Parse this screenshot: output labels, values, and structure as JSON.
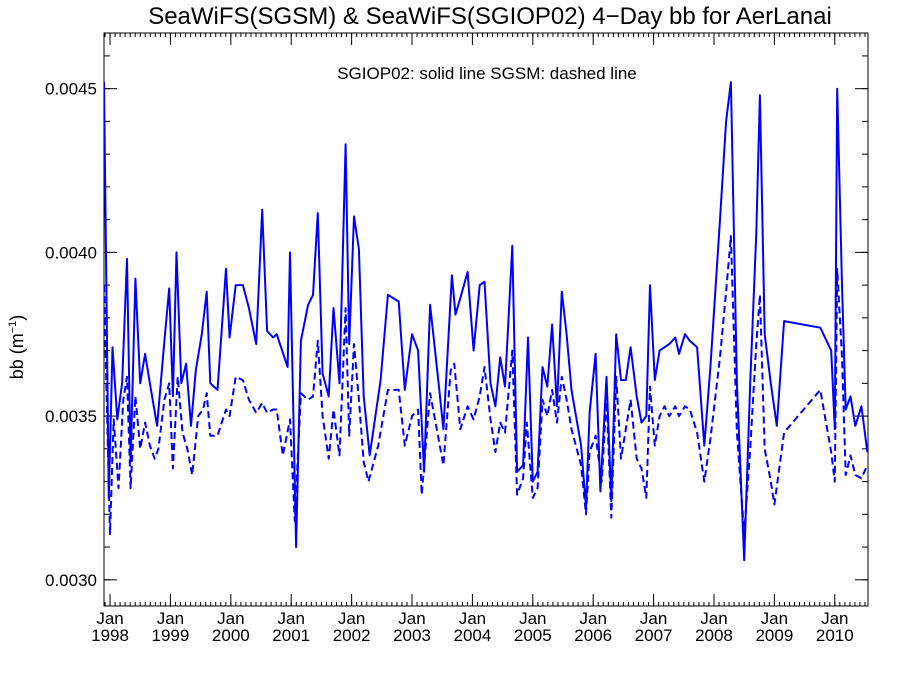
{
  "chart_data": {
    "type": "line",
    "title": "SeaWiFS(SGSM) & SeaWiFS(SGIOP02) 4−Day bb for AerLanai",
    "xlabel": "",
    "ylabel": "bb (m",
    "ylabel_sup": "−1",
    "ylabel_close": ")",
    "annotation": "SGIOP02: solid line   SGSM: dashed line",
    "xlim": [
      1997.9,
      2010.55
    ],
    "ylim": [
      0.00292,
      0.00467
    ],
    "x_ticks": [
      {
        "x": 1998,
        "month": "Jan",
        "year": "1998"
      },
      {
        "x": 1999,
        "month": "Jan",
        "year": "1999"
      },
      {
        "x": 2000,
        "month": "Jan",
        "year": "2000"
      },
      {
        "x": 2001,
        "month": "Jan",
        "year": "2001"
      },
      {
        "x": 2002,
        "month": "Jan",
        "year": "2002"
      },
      {
        "x": 2003,
        "month": "Jan",
        "year": "2003"
      },
      {
        "x": 2004,
        "month": "Jan",
        "year": "2004"
      },
      {
        "x": 2005,
        "month": "Jan",
        "year": "2005"
      },
      {
        "x": 2006,
        "month": "Jan",
        "year": "2006"
      },
      {
        "x": 2007,
        "month": "Jan",
        "year": "2007"
      },
      {
        "x": 2008,
        "month": "Jan",
        "year": "2008"
      },
      {
        "x": 2009,
        "month": "Jan",
        "year": "2009"
      },
      {
        "x": 2010,
        "month": "Jan",
        "year": "2010"
      }
    ],
    "y_ticks": [
      {
        "v": 0.003,
        "label": "0.0030"
      },
      {
        "v": 0.0035,
        "label": "0.0035"
      },
      {
        "v": 0.004,
        "label": "0.0040"
      },
      {
        "v": 0.0045,
        "label": "0.0045"
      }
    ],
    "color": "#0000ff",
    "series": [
      {
        "name": "SGIOP02",
        "style": "solid",
        "points": [
          [
            1997.9,
            0.00452
          ],
          [
            1997.98,
            0.00325
          ],
          [
            1998.04,
            0.00371
          ],
          [
            1998.12,
            0.00349
          ],
          [
            1998.2,
            0.0036
          ],
          [
            1998.28,
            0.00398
          ],
          [
            1998.34,
            0.00336
          ],
          [
            1998.42,
            0.00392
          ],
          [
            1998.5,
            0.0036
          ],
          [
            1998.58,
            0.00369
          ],
          [
            1998.66,
            0.0036
          ],
          [
            1998.78,
            0.00347
          ],
          [
            1998.9,
            0.00373
          ],
          [
            1998.98,
            0.00389
          ],
          [
            1999.04,
            0.00356
          ],
          [
            1999.1,
            0.004
          ],
          [
            1999.18,
            0.0036
          ],
          [
            1999.26,
            0.00366
          ],
          [
            1999.34,
            0.00347
          ],
          [
            1999.42,
            0.00364
          ],
          [
            1999.52,
            0.00375
          ],
          [
            1999.6,
            0.00388
          ],
          [
            1999.66,
            0.0036
          ],
          [
            1999.78,
            0.00358
          ],
          [
            1999.92,
            0.00395
          ],
          [
            1999.98,
            0.00374
          ],
          [
            2000.08,
            0.0039
          ],
          [
            2000.2,
            0.0039
          ],
          [
            2000.3,
            0.00383
          ],
          [
            2000.42,
            0.00372
          ],
          [
            2000.52,
            0.00413
          ],
          [
            2000.6,
            0.00376
          ],
          [
            2000.7,
            0.00374
          ],
          [
            2000.76,
            0.00375
          ],
          [
            2000.94,
            0.00365
          ],
          [
            2000.98,
            0.004
          ],
          [
            2001.08,
            0.0031
          ],
          [
            2001.16,
            0.00373
          ],
          [
            2001.28,
            0.00384
          ],
          [
            2001.36,
            0.00387
          ],
          [
            2001.44,
            0.00412
          ],
          [
            2001.52,
            0.00363
          ],
          [
            2001.62,
            0.00356
          ],
          [
            2001.7,
            0.00383
          ],
          [
            2001.8,
            0.0036
          ],
          [
            2001.9,
            0.00433
          ],
          [
            2001.96,
            0.00372
          ],
          [
            2002.04,
            0.00411
          ],
          [
            2002.12,
            0.00401
          ],
          [
            2002.2,
            0.00356
          ],
          [
            2002.3,
            0.00338
          ],
          [
            2002.48,
            0.00361
          ],
          [
            2002.6,
            0.00387
          ],
          [
            2002.78,
            0.00385
          ],
          [
            2002.88,
            0.00358
          ],
          [
            2003.0,
            0.00375
          ],
          [
            2003.1,
            0.0037
          ],
          [
            2003.2,
            0.00333
          ],
          [
            2003.3,
            0.00384
          ],
          [
            2003.44,
            0.0036
          ],
          [
            2003.52,
            0.00346
          ],
          [
            2003.66,
            0.00393
          ],
          [
            2003.72,
            0.00381
          ],
          [
            2003.8,
            0.00386
          ],
          [
            2003.92,
            0.00394
          ],
          [
            2004.02,
            0.0037
          ],
          [
            2004.12,
            0.0039
          ],
          [
            2004.2,
            0.00391
          ],
          [
            2004.3,
            0.0036
          ],
          [
            2004.38,
            0.00353
          ],
          [
            2004.46,
            0.00368
          ],
          [
            2004.54,
            0.00359
          ],
          [
            2004.66,
            0.00402
          ],
          [
            2004.74,
            0.00333
          ],
          [
            2004.84,
            0.00335
          ],
          [
            2004.92,
            0.00374
          ],
          [
            2005.0,
            0.0033
          ],
          [
            2005.08,
            0.00333
          ],
          [
            2005.16,
            0.00365
          ],
          [
            2005.24,
            0.00359
          ],
          [
            2005.32,
            0.00378
          ],
          [
            2005.4,
            0.00353
          ],
          [
            2005.48,
            0.00388
          ],
          [
            2005.56,
            0.00375
          ],
          [
            2005.64,
            0.00358
          ],
          [
            2005.8,
            0.00341
          ],
          [
            2005.88,
            0.00322
          ],
          [
            2005.94,
            0.00351
          ],
          [
            2006.04,
            0.00369
          ],
          [
            2006.12,
            0.00327
          ],
          [
            2006.22,
            0.00362
          ],
          [
            2006.3,
            0.00324
          ],
          [
            2006.38,
            0.00375
          ],
          [
            2006.46,
            0.00361
          ],
          [
            2006.54,
            0.00361
          ],
          [
            2006.62,
            0.00371
          ],
          [
            2006.72,
            0.00356
          ],
          [
            2006.8,
            0.00348
          ],
          [
            2006.88,
            0.0035
          ],
          [
            2006.94,
            0.0039
          ],
          [
            2007.02,
            0.00361
          ],
          [
            2007.1,
            0.0037
          ],
          [
            2007.18,
            0.00371
          ],
          [
            2007.26,
            0.00372
          ],
          [
            2007.36,
            0.00374
          ],
          [
            2007.42,
            0.00369
          ],
          [
            2007.52,
            0.00375
          ],
          [
            2007.6,
            0.00373
          ],
          [
            2007.72,
            0.00371
          ],
          [
            2007.84,
            0.00341
          ],
          [
            2007.94,
            0.00365
          ],
          [
            2008.1,
            0.0041
          ],
          [
            2008.2,
            0.0044
          ],
          [
            2008.28,
            0.00452
          ],
          [
            2008.38,
            0.0036
          ],
          [
            2008.5,
            0.00306
          ],
          [
            2008.6,
            0.0036
          ],
          [
            2008.7,
            0.00406
          ],
          [
            2008.76,
            0.00448
          ],
          [
            2008.84,
            0.00375
          ],
          [
            2008.94,
            0.0036
          ],
          [
            2009.04,
            0.00347
          ],
          [
            2009.16,
            0.00379
          ],
          [
            2009.76,
            0.00377
          ],
          [
            2009.94,
            0.0037
          ],
          [
            2010.0,
            0.00346
          ],
          [
            2010.04,
            0.0045
          ],
          [
            2010.12,
            0.0039
          ],
          [
            2010.18,
            0.00352
          ],
          [
            2010.26,
            0.00356
          ],
          [
            2010.34,
            0.00347
          ],
          [
            2010.44,
            0.00353
          ],
          [
            2010.54,
            0.00339
          ]
        ]
      },
      {
        "name": "SGSM",
        "style": "dashed",
        "points": [
          [
            1997.9,
            0.0039
          ],
          [
            1998.0,
            0.00314
          ],
          [
            1998.06,
            0.00349
          ],
          [
            1998.14,
            0.00328
          ],
          [
            1998.22,
            0.00355
          ],
          [
            1998.28,
            0.00362
          ],
          [
            1998.34,
            0.00328
          ],
          [
            1998.42,
            0.00356
          ],
          [
            1998.5,
            0.0034
          ],
          [
            1998.58,
            0.00348
          ],
          [
            1998.66,
            0.00341
          ],
          [
            1998.74,
            0.00337
          ],
          [
            1998.8,
            0.0034
          ],
          [
            1998.9,
            0.00355
          ],
          [
            1998.98,
            0.0036
          ],
          [
            1999.04,
            0.00334
          ],
          [
            1999.12,
            0.00362
          ],
          [
            1999.2,
            0.00345
          ],
          [
            1999.28,
            0.0034
          ],
          [
            1999.36,
            0.00332
          ],
          [
            1999.46,
            0.0035
          ],
          [
            1999.54,
            0.00352
          ],
          [
            1999.6,
            0.00357
          ],
          [
            1999.66,
            0.00344
          ],
          [
            1999.78,
            0.00344
          ],
          [
            1999.92,
            0.00352
          ],
          [
            1999.98,
            0.0035
          ],
          [
            2000.08,
            0.00362
          ],
          [
            2000.2,
            0.00361
          ],
          [
            2000.3,
            0.00355
          ],
          [
            2000.42,
            0.00351
          ],
          [
            2000.52,
            0.00354
          ],
          [
            2000.6,
            0.00351
          ],
          [
            2000.7,
            0.00352
          ],
          [
            2000.76,
            0.00352
          ],
          [
            2000.86,
            0.00338
          ],
          [
            2000.98,
            0.00349
          ],
          [
            2001.06,
            0.00318
          ],
          [
            2001.16,
            0.00357
          ],
          [
            2001.28,
            0.00355
          ],
          [
            2001.36,
            0.00356
          ],
          [
            2001.44,
            0.00373
          ],
          [
            2001.52,
            0.0035
          ],
          [
            2001.62,
            0.00337
          ],
          [
            2001.7,
            0.00352
          ],
          [
            2001.8,
            0.00338
          ],
          [
            2001.9,
            0.00383
          ],
          [
            2001.96,
            0.00344
          ],
          [
            2002.04,
            0.00372
          ],
          [
            2002.12,
            0.00355
          ],
          [
            2002.2,
            0.00336
          ],
          [
            2002.28,
            0.0033
          ],
          [
            2002.44,
            0.00341
          ],
          [
            2002.6,
            0.00358
          ],
          [
            2002.78,
            0.00358
          ],
          [
            2002.88,
            0.00341
          ],
          [
            2003.0,
            0.0035
          ],
          [
            2003.1,
            0.00352
          ],
          [
            2003.16,
            0.00326
          ],
          [
            2003.3,
            0.00357
          ],
          [
            2003.42,
            0.00345
          ],
          [
            2003.52,
            0.00335
          ],
          [
            2003.64,
            0.00364
          ],
          [
            2003.7,
            0.00366
          ],
          [
            2003.8,
            0.00346
          ],
          [
            2003.92,
            0.00353
          ],
          [
            2004.02,
            0.00349
          ],
          [
            2004.12,
            0.00356
          ],
          [
            2004.2,
            0.00365
          ],
          [
            2004.3,
            0.00349
          ],
          [
            2004.38,
            0.00339
          ],
          [
            2004.46,
            0.00348
          ],
          [
            2004.54,
            0.00345
          ],
          [
            2004.66,
            0.0037
          ],
          [
            2004.74,
            0.00326
          ],
          [
            2004.84,
            0.00331
          ],
          [
            2004.9,
            0.00348
          ],
          [
            2005.0,
            0.00325
          ],
          [
            2005.08,
            0.00328
          ],
          [
            2005.16,
            0.00355
          ],
          [
            2005.24,
            0.0035
          ],
          [
            2005.32,
            0.00358
          ],
          [
            2005.4,
            0.00348
          ],
          [
            2005.48,
            0.00362
          ],
          [
            2005.56,
            0.00355
          ],
          [
            2005.64,
            0.00346
          ],
          [
            2005.8,
            0.00335
          ],
          [
            2005.88,
            0.0032
          ],
          [
            2005.94,
            0.00339
          ],
          [
            2006.04,
            0.00344
          ],
          [
            2006.14,
            0.0033
          ],
          [
            2006.22,
            0.00356
          ],
          [
            2006.3,
            0.00319
          ],
          [
            2006.38,
            0.00362
          ],
          [
            2006.46,
            0.00337
          ],
          [
            2006.54,
            0.00346
          ],
          [
            2006.62,
            0.00355
          ],
          [
            2006.72,
            0.00337
          ],
          [
            2006.8,
            0.00334
          ],
          [
            2006.88,
            0.00325
          ],
          [
            2006.94,
            0.00359
          ],
          [
            2007.02,
            0.00341
          ],
          [
            2007.1,
            0.0035
          ],
          [
            2007.18,
            0.00353
          ],
          [
            2007.26,
            0.0035
          ],
          [
            2007.36,
            0.00353
          ],
          [
            2007.42,
            0.0035
          ],
          [
            2007.52,
            0.00353
          ],
          [
            2007.6,
            0.00352
          ],
          [
            2007.72,
            0.00345
          ],
          [
            2007.84,
            0.0033
          ],
          [
            2007.94,
            0.00343
          ],
          [
            2008.1,
            0.00368
          ],
          [
            2008.2,
            0.00388
          ],
          [
            2008.28,
            0.00405
          ],
          [
            2008.38,
            0.00345
          ],
          [
            2008.5,
            0.00314
          ],
          [
            2008.6,
            0.0034
          ],
          [
            2008.7,
            0.00372
          ],
          [
            2008.76,
            0.00387
          ],
          [
            2008.84,
            0.0034
          ],
          [
            2008.94,
            0.0033
          ],
          [
            2009.0,
            0.00323
          ],
          [
            2009.16,
            0.00345
          ],
          [
            2009.76,
            0.00358
          ],
          [
            2009.94,
            0.00339
          ],
          [
            2010.0,
            0.0033
          ],
          [
            2010.04,
            0.00395
          ],
          [
            2010.12,
            0.00368
          ],
          [
            2010.18,
            0.00332
          ],
          [
            2010.26,
            0.00338
          ],
          [
            2010.34,
            0.00332
          ],
          [
            2010.44,
            0.00331
          ],
          [
            2010.54,
            0.00335
          ]
        ]
      }
    ]
  }
}
